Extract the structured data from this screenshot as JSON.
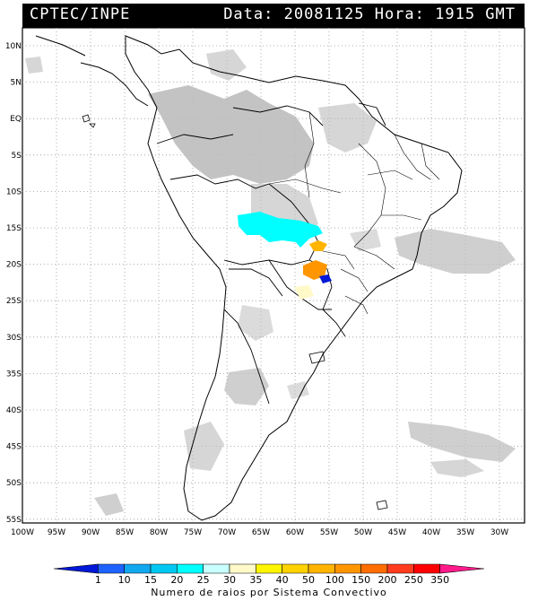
{
  "header": {
    "source": "CPTEC/INPE",
    "date_time": "Data: 20081125 Hora: 1915 GMT"
  },
  "map": {
    "lat_labels": [
      "10N",
      "5N",
      "EQ",
      "5S",
      "10S",
      "15S",
      "20S",
      "25S",
      "30S",
      "35S",
      "40S",
      "45S",
      "50S",
      "55S"
    ],
    "lon_labels": [
      "100W",
      "95W",
      "90W",
      "85W",
      "80W",
      "75W",
      "70W",
      "65W",
      "60W",
      "55W",
      "50W",
      "45W",
      "40W",
      "35W",
      "30W"
    ],
    "land_color": "#ffffff",
    "cloud_color": "#bdbdbd",
    "border_color": "#000000",
    "grid": "dotted"
  },
  "legend": {
    "title": "Numero de raios por Sistema Convectivo",
    "ticks": [
      "1",
      "10",
      "15",
      "20",
      "25",
      "30",
      "35",
      "40",
      "50",
      "100",
      "150",
      "200",
      "250",
      "350"
    ],
    "colors": [
      "#0018d8",
      "#1e63ff",
      "#12a8f0",
      "#00c8f0",
      "#00ffff",
      "#c8ffff",
      "#fffac8",
      "#fff500",
      "#ffd200",
      "#ffb400",
      "#ff9600",
      "#ff6e00",
      "#ff3c1e",
      "#ff0000",
      "#ff1a8c"
    ]
  }
}
